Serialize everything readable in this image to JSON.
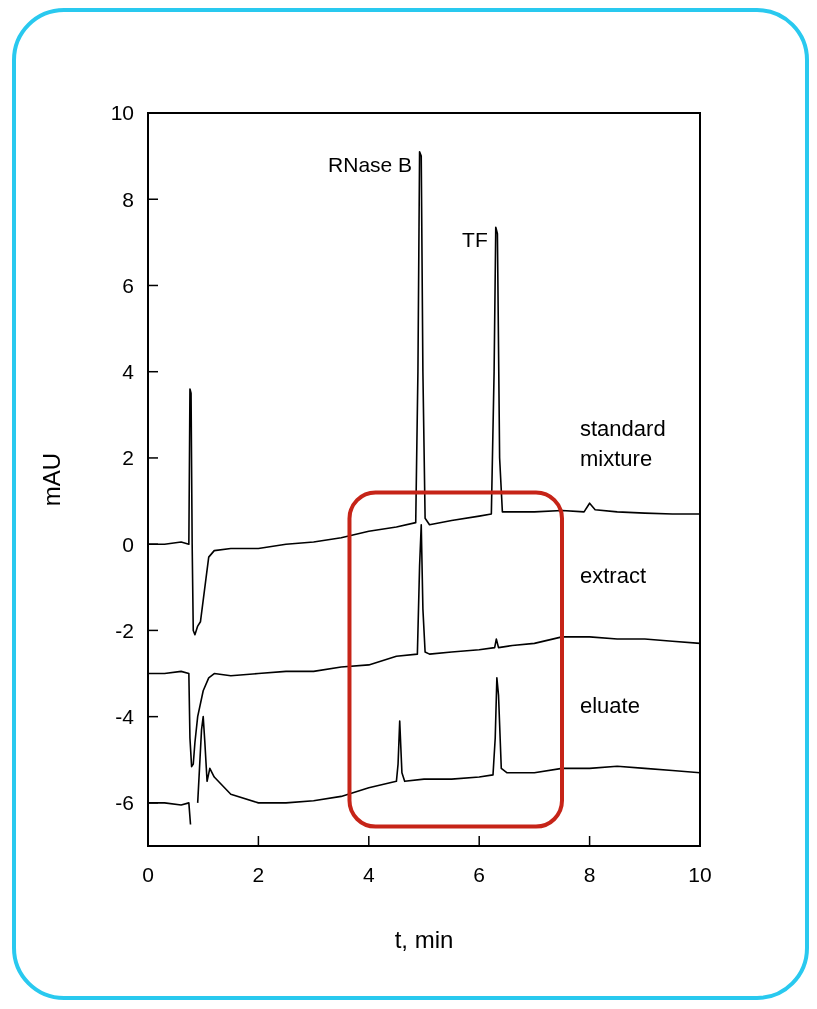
{
  "chart_data": {
    "type": "line",
    "xlabel": "t, min",
    "ylabel": "mAU",
    "xlim": [
      0,
      10
    ],
    "ylim": [
      -7,
      10
    ],
    "xticks": [
      0,
      2,
      4,
      6,
      8,
      10
    ],
    "yticks": [
      -6,
      -4,
      -2,
      0,
      2,
      4,
      6,
      8,
      10
    ],
    "grid": false,
    "marker": "none",
    "line_style": "solid",
    "series": [
      {
        "name": "standard mixture",
        "color": "#000000",
        "x": [
          0,
          0.3,
          0.6,
          0.74,
          0.76,
          0.78,
          0.8,
          0.82,
          0.85,
          0.9,
          0.95,
          1.05,
          1.1,
          1.2,
          1.5,
          2,
          2.5,
          3,
          3.5,
          4,
          4.5,
          4.85,
          4.89,
          4.92,
          4.95,
          4.98,
          5.02,
          5.1,
          5.5,
          6,
          6.22,
          6.27,
          6.3,
          6.33,
          6.37,
          6.42,
          6.5,
          7,
          7.5,
          7.9,
          8,
          8.1,
          8.5,
          9,
          9.5,
          10
        ],
        "values": [
          0,
          0,
          0.05,
          0,
          3.6,
          3.5,
          0,
          -2,
          -2.1,
          -1.9,
          -1.8,
          -0.8,
          -0.3,
          -0.15,
          -0.1,
          -0.1,
          0,
          0.05,
          0.15,
          0.3,
          0.4,
          0.5,
          4,
          9.1,
          9.0,
          4,
          0.6,
          0.45,
          0.55,
          0.65,
          0.7,
          4,
          7.35,
          7.2,
          2,
          0.75,
          0.75,
          0.75,
          0.78,
          0.75,
          0.95,
          0.8,
          0.75,
          0.72,
          0.7,
          0.7
        ]
      },
      {
        "name": "extract",
        "color": "#000000",
        "x": [
          0,
          0.3,
          0.6,
          0.74,
          0.76,
          0.79,
          0.82,
          0.85,
          0.9,
          1.0,
          1.1,
          1.2,
          1.5,
          2,
          2.5,
          3,
          3.5,
          4,
          4.5,
          4.88,
          4.92,
          4.95,
          4.98,
          5.02,
          5.1,
          5.5,
          6,
          6.28,
          6.31,
          6.35,
          6.6,
          7,
          7.5,
          8,
          8.5,
          9,
          9.5,
          10
        ],
        "values": [
          -3,
          -3,
          -2.95,
          -3,
          -4.5,
          -5.16,
          -5.1,
          -4.6,
          -4.0,
          -3.4,
          -3.1,
          -3.0,
          -3.05,
          -3.0,
          -2.95,
          -2.95,
          -2.85,
          -2.8,
          -2.6,
          -2.55,
          -0.5,
          0.45,
          -1.5,
          -2.5,
          -2.55,
          -2.5,
          -2.45,
          -2.4,
          -2.2,
          -2.4,
          -2.35,
          -2.3,
          -2.15,
          -2.15,
          -2.2,
          -2.2,
          -2.25,
          -2.3
        ]
      },
      {
        "name": "eluate",
        "color": "#000000",
        "x": [
          0,
          0.3,
          0.6,
          0.74,
          0.77,
          0.8,
          0.85,
          0.9,
          0.97,
          1.0,
          1.03,
          1.07,
          1.12,
          1.2,
          1.5,
          2,
          2.5,
          3,
          3.5,
          4,
          4.5,
          4.53,
          4.56,
          4.6,
          4.65,
          5,
          5.5,
          6,
          6.25,
          6.29,
          6.32,
          6.35,
          6.4,
          6.5,
          7,
          7.5,
          8,
          8.5,
          9,
          9.5,
          10
        ],
        "values": [
          -6,
          -6,
          -6.05,
          -6,
          -6.5,
          null,
          null,
          -6,
          -4.3,
          -4.0,
          -4.6,
          -5.5,
          -5.2,
          -5.4,
          -5.8,
          -6.0,
          -6.0,
          -5.95,
          -5.85,
          -5.65,
          -5.5,
          -5.1,
          -4.1,
          -5.3,
          -5.5,
          -5.45,
          -5.45,
          -5.4,
          -5.35,
          -4.5,
          -3.1,
          -3.5,
          -5.2,
          -5.3,
          -5.3,
          -5.2,
          -5.2,
          -5.15,
          -5.2,
          -5.25,
          -5.3
        ]
      }
    ],
    "annotations": [
      {
        "text": "RNase B",
        "x": 4.93,
        "y": 9.1
      },
      {
        "text": "TF",
        "x": 6.3,
        "y": 7.35
      }
    ]
  }
}
